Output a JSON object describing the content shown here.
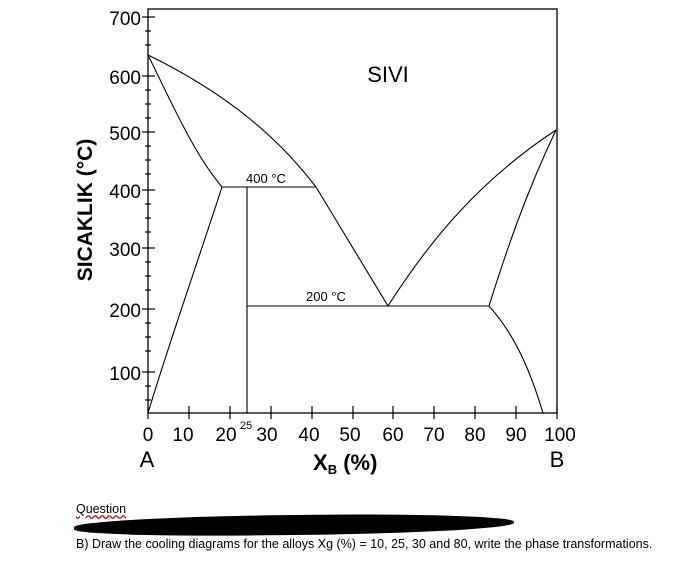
{
  "y_axis": {
    "title": "SICAKLIK (°C)",
    "ticks": [
      "100",
      "200",
      "300",
      "400",
      "500",
      "600",
      "700"
    ]
  },
  "x_axis": {
    "title_main": "X",
    "title_sub": "B",
    "title_rest": " (%)",
    "ticks": [
      "0",
      "10",
      "20",
      "30",
      "40",
      "50",
      "60",
      "70",
      "80",
      "90",
      "100"
    ],
    "extra_tick": "25",
    "left_component": "A",
    "right_component": "B"
  },
  "labels": {
    "liquid": "SIVI",
    "iso_400": "400 °C",
    "iso_200": "200 °C"
  },
  "question": {
    "heading": "Question",
    "text": "B) Draw the cooling diagrams for the alloys Xg (%) = 10, 25, 30 and 80, write the phase transformations."
  },
  "colors": {
    "line": "#000000",
    "redaction": "#000000"
  }
}
